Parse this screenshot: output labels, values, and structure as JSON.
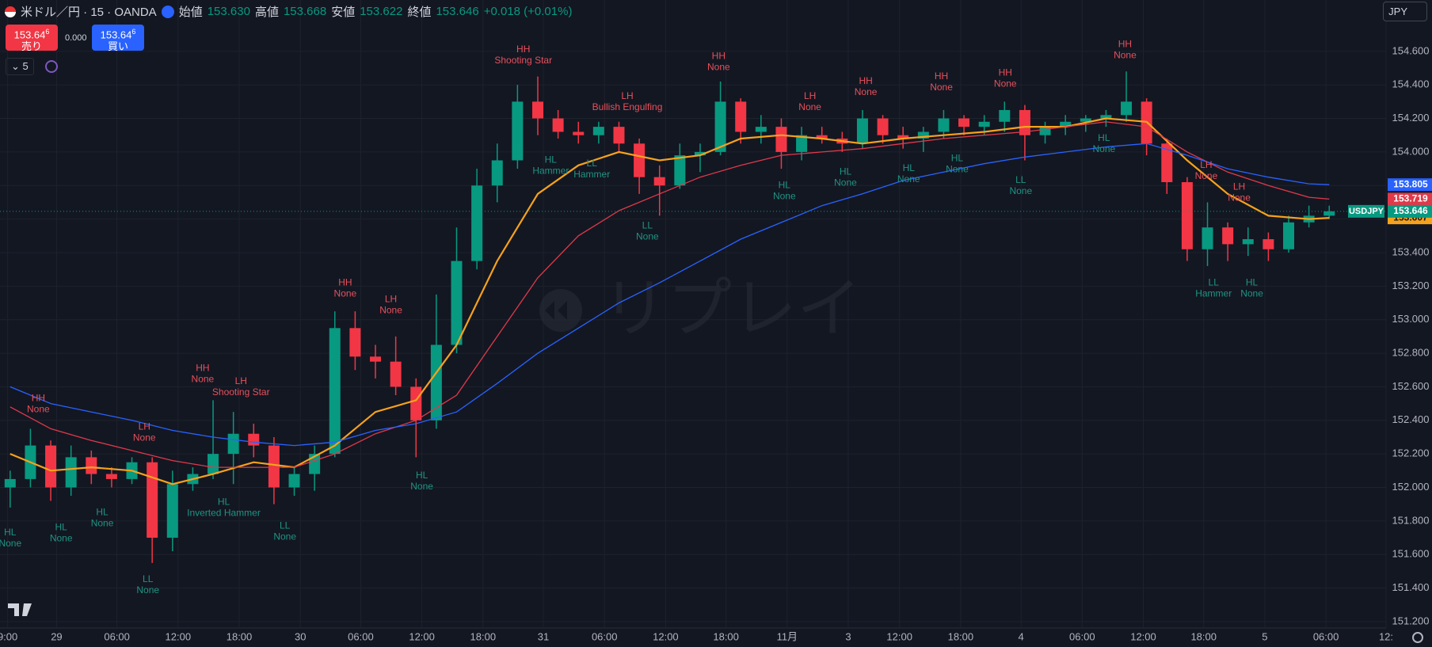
{
  "header": {
    "symbol": "米ドル／円 · 15 · OANDA",
    "open_label": "始値",
    "open": "153.630",
    "high_label": "高値",
    "high": "153.668",
    "low_label": "安値",
    "low": "153.622",
    "close_label": "終値",
    "close": "153.646",
    "change": "+0.018 (+0.01%)",
    "currency": "JPY"
  },
  "trade": {
    "sell_price": "153.64",
    "sell_pip": "6",
    "sell_label": "売り",
    "spread": "0.000",
    "buy_price": "153.64",
    "buy_pip": "6",
    "buy_label": "買い",
    "indicator_count": "5"
  },
  "watermark": "リプレイ",
  "chart_data": {
    "type": "candlestick",
    "symbol_badge": "USDJPY",
    "up_color": "#089981",
    "down_color": "#f23645",
    "grid": true,
    "xlim": [
      0,
      546.4
    ],
    "ylim": [
      151.162,
      154.906
    ],
    "xticks": [
      {
        "value": 3,
        "label": "9:00"
      },
      {
        "value": 22.3,
        "label": "29"
      },
      {
        "value": 46.1,
        "label": "06:00"
      },
      {
        "value": 70.2,
        "label": "12:00"
      },
      {
        "value": 94.3,
        "label": "18:00"
      },
      {
        "value": 118.4,
        "label": "30"
      },
      {
        "value": 142.2,
        "label": "06:00"
      },
      {
        "value": 166.3,
        "label": "12:00"
      },
      {
        "value": 190.4,
        "label": "18:00"
      },
      {
        "value": 214.2,
        "label": "31"
      },
      {
        "value": 238.3,
        "label": "06:00"
      },
      {
        "value": 262.4,
        "label": "12:00"
      },
      {
        "value": 286.2,
        "label": "18:00"
      },
      {
        "value": 310.3,
        "label": "11月"
      },
      {
        "value": 334.4,
        "label": "3"
      },
      {
        "value": 354.6,
        "label": "12:00"
      },
      {
        "value": 378.7,
        "label": "18:00"
      },
      {
        "value": 402.5,
        "label": "4"
      },
      {
        "value": 426.6,
        "label": "06:00"
      },
      {
        "value": 450.7,
        "label": "12:00"
      },
      {
        "value": 474.5,
        "label": "18:00"
      },
      {
        "value": 498.6,
        "label": "5"
      },
      {
        "value": 522.7,
        "label": "06:00"
      },
      {
        "value": 546.4,
        "label": "12:"
      }
    ],
    "yticks": [
      {
        "value": 151.2,
        "label": "151.200"
      },
      {
        "value": 151.4,
        "label": "151.400"
      },
      {
        "value": 151.6,
        "label": "151.600"
      },
      {
        "value": 151.8,
        "label": "151.800"
      },
      {
        "value": 152.0,
        "label": "152.000"
      },
      {
        "value": 152.2,
        "label": "152.200"
      },
      {
        "value": 152.4,
        "label": "152.400"
      },
      {
        "value": 152.6,
        "label": "152.600"
      },
      {
        "value": 152.8,
        "label": "152.800"
      },
      {
        "value": 153.0,
        "label": "153.000"
      },
      {
        "value": 153.2,
        "label": "153.200"
      },
      {
        "value": 153.4,
        "label": "153.400"
      },
      {
        "value": 153.6,
        "label": "153.600"
      },
      {
        "value": 153.8,
        "label": "153.800"
      },
      {
        "value": 154.0,
        "label": "154.000"
      },
      {
        "value": 154.2,
        "label": "154.200"
      },
      {
        "value": 154.4,
        "label": "154.400"
      },
      {
        "value": 154.6,
        "label": "154.600"
      }
    ],
    "x": [
      4,
      12,
      20,
      28,
      36,
      44,
      52,
      60,
      68,
      76,
      84,
      92,
      100,
      108,
      116,
      124,
      132,
      140,
      148,
      156,
      164,
      172,
      180,
      188,
      196,
      204,
      212,
      220,
      228,
      236,
      244,
      252,
      260,
      268,
      276,
      284,
      292,
      300,
      308,
      316,
      324,
      332,
      340,
      348,
      356,
      364,
      372,
      380,
      388,
      396,
      404,
      412,
      420,
      428,
      436,
      444,
      452,
      460,
      468,
      476,
      484,
      492,
      500,
      508,
      516,
      524
    ],
    "candles": [
      [
        152.0,
        152.1,
        151.88,
        152.05
      ],
      [
        152.05,
        152.35,
        152.0,
        152.25
      ],
      [
        152.25,
        152.28,
        151.92,
        152.0
      ],
      [
        152.0,
        152.25,
        151.95,
        152.18
      ],
      [
        152.18,
        152.22,
        152.02,
        152.08
      ],
      [
        152.08,
        152.12,
        152.0,
        152.05
      ],
      [
        152.05,
        152.18,
        152.02,
        152.15
      ],
      [
        152.15,
        152.18,
        151.55,
        151.7
      ],
      [
        151.7,
        152.1,
        151.62,
        152.02
      ],
      [
        152.02,
        152.12,
        151.98,
        152.08
      ],
      [
        152.08,
        152.52,
        152.05,
        152.2
      ],
      [
        152.2,
        152.45,
        152.02,
        152.32
      ],
      [
        152.32,
        152.38,
        152.18,
        152.25
      ],
      [
        152.25,
        152.3,
        151.9,
        152.0
      ],
      [
        152.0,
        152.12,
        151.95,
        152.08
      ],
      [
        152.08,
        152.25,
        151.98,
        152.2
      ],
      [
        152.2,
        153.05,
        152.18,
        152.95
      ],
      [
        152.95,
        153.05,
        152.7,
        152.78
      ],
      [
        152.78,
        152.85,
        152.65,
        152.75
      ],
      [
        152.75,
        152.9,
        152.55,
        152.6
      ],
      [
        152.6,
        152.65,
        152.18,
        152.4
      ],
      [
        152.4,
        153.15,
        152.35,
        152.85
      ],
      [
        152.85,
        153.55,
        152.8,
        153.35
      ],
      [
        153.35,
        153.9,
        153.3,
        153.8
      ],
      [
        153.8,
        154.05,
        153.7,
        153.95
      ],
      [
        153.95,
        154.4,
        153.9,
        154.3
      ],
      [
        154.3,
        154.45,
        154.1,
        154.2
      ],
      [
        154.2,
        154.25,
        154.08,
        154.12
      ],
      [
        154.12,
        154.18,
        154.05,
        154.1
      ],
      [
        154.1,
        154.18,
        154.05,
        154.15
      ],
      [
        154.15,
        154.18,
        154.0,
        154.05
      ],
      [
        154.05,
        154.08,
        153.75,
        153.85
      ],
      [
        153.85,
        153.92,
        153.62,
        153.8
      ],
      [
        153.8,
        154.05,
        153.78,
        153.98
      ],
      [
        153.98,
        154.05,
        153.88,
        154.0
      ],
      [
        154.0,
        154.42,
        153.98,
        154.3
      ],
      [
        154.3,
        154.32,
        154.05,
        154.12
      ],
      [
        154.12,
        154.22,
        154.05,
        154.15
      ],
      [
        154.15,
        154.2,
        153.9,
        154.0
      ],
      [
        154.0,
        154.15,
        153.95,
        154.1
      ],
      [
        154.1,
        154.15,
        154.05,
        154.08
      ],
      [
        154.08,
        154.12,
        154.0,
        154.05
      ],
      [
        154.05,
        154.25,
        154.02,
        154.2
      ],
      [
        154.2,
        154.22,
        154.05,
        154.1
      ],
      [
        154.1,
        154.15,
        154.02,
        154.08
      ],
      [
        154.08,
        154.15,
        154.0,
        154.12
      ],
      [
        154.12,
        154.25,
        154.08,
        154.2
      ],
      [
        154.2,
        154.22,
        154.1,
        154.15
      ],
      [
        154.15,
        154.22,
        154.1,
        154.18
      ],
      [
        154.18,
        154.3,
        154.12,
        154.25
      ],
      [
        154.25,
        154.28,
        153.95,
        154.1
      ],
      [
        154.1,
        154.18,
        154.05,
        154.15
      ],
      [
        154.15,
        154.22,
        154.1,
        154.18
      ],
      [
        154.18,
        154.22,
        154.12,
        154.2
      ],
      [
        154.2,
        154.25,
        154.15,
        154.22
      ],
      [
        154.22,
        154.48,
        154.18,
        154.3
      ],
      [
        154.3,
        154.32,
        153.98,
        154.05
      ],
      [
        154.05,
        154.08,
        153.75,
        153.82
      ],
      [
        153.82,
        153.85,
        153.35,
        153.42
      ],
      [
        153.42,
        153.7,
        153.32,
        153.55
      ],
      [
        153.55,
        153.58,
        153.35,
        153.45
      ],
      [
        153.45,
        153.55,
        153.38,
        153.48
      ],
      [
        153.48,
        153.52,
        153.35,
        153.42
      ],
      [
        153.42,
        153.62,
        153.4,
        153.58
      ],
      [
        153.58,
        153.68,
        153.55,
        153.62
      ],
      [
        153.62,
        153.68,
        153.6,
        153.646
      ]
    ],
    "lines": [
      {
        "color": "#f7a21b",
        "x": [
          4,
          20,
          36,
          52,
          68,
          84,
          100,
          116,
          132,
          148,
          164,
          180,
          196,
          212,
          228,
          244,
          260,
          276,
          292,
          308,
          324,
          340,
          356,
          372,
          388,
          404,
          420,
          436,
          452,
          468,
          484,
          500,
          516,
          524
        ],
        "values": [
          152.2,
          152.1,
          152.12,
          152.1,
          152.02,
          152.08,
          152.15,
          152.12,
          152.25,
          152.45,
          152.52,
          152.85,
          153.35,
          153.75,
          153.92,
          154.0,
          153.95,
          153.98,
          154.08,
          154.1,
          154.08,
          154.05,
          154.08,
          154.1,
          154.12,
          154.15,
          154.15,
          154.2,
          154.18,
          153.95,
          153.75,
          153.62,
          153.6,
          153.607
        ]
      },
      {
        "color": "#e0394a",
        "x": [
          4,
          20,
          36,
          52,
          68,
          84,
          100,
          116,
          132,
          148,
          164,
          180,
          196,
          212,
          228,
          244,
          260,
          276,
          292,
          308,
          324,
          340,
          356,
          372,
          388,
          404,
          420,
          436,
          452,
          468,
          484,
          500,
          516,
          524
        ],
        "values": [
          152.48,
          152.35,
          152.28,
          152.22,
          152.16,
          152.12,
          152.12,
          152.12,
          152.2,
          152.32,
          152.4,
          152.55,
          152.9,
          153.25,
          153.5,
          153.65,
          153.75,
          153.85,
          153.92,
          153.98,
          154.0,
          154.02,
          154.05,
          154.08,
          154.1,
          154.12,
          154.15,
          154.18,
          154.15,
          154.0,
          153.88,
          153.8,
          153.73,
          153.719
        ]
      },
      {
        "color": "#2962ff",
        "x": [
          4,
          20,
          36,
          52,
          68,
          84,
          100,
          116,
          132,
          148,
          164,
          180,
          196,
          212,
          228,
          244,
          260,
          276,
          292,
          308,
          324,
          340,
          356,
          372,
          388,
          404,
          420,
          436,
          452,
          468,
          484,
          500,
          516,
          524
        ],
        "values": [
          152.6,
          152.5,
          152.45,
          152.4,
          152.34,
          152.3,
          152.27,
          152.25,
          152.27,
          152.34,
          152.38,
          152.45,
          152.62,
          152.8,
          152.95,
          153.1,
          153.22,
          153.35,
          153.48,
          153.58,
          153.68,
          153.75,
          153.83,
          153.88,
          153.93,
          153.97,
          154.0,
          154.03,
          154.05,
          153.98,
          153.9,
          153.85,
          153.81,
          153.805
        ]
      }
    ],
    "annotation_groups": [
      {
        "color": "#e8505b",
        "items": [
          {
            "x": 15.1,
            "y": 152.53,
            "text": [
              "HH",
              "None"
            ]
          },
          {
            "x": 56.9,
            "y": 152.36,
            "text": [
              "LH",
              "None"
            ]
          },
          {
            "x": 79.9,
            "y": 152.71,
            "text": [
              "HH",
              "None"
            ]
          },
          {
            "x": 95.0,
            "y": 152.63,
            "text": [
              "LH",
              "Shooting Star"
            ]
          },
          {
            "x": 136.1,
            "y": 153.22,
            "text": [
              "HH",
              "None"
            ]
          },
          {
            "x": 154.1,
            "y": 153.12,
            "text": [
              "LH",
              "None"
            ]
          },
          {
            "x": 206.3,
            "y": 154.61,
            "text": [
              "HH",
              "Shooting Star"
            ]
          },
          {
            "x": 247.3,
            "y": 154.33,
            "text": [
              "LH",
              "Bullish Engulfing"
            ]
          },
          {
            "x": 283.3,
            "y": 154.57,
            "text": [
              "HH",
              "None"
            ]
          },
          {
            "x": 319.3,
            "y": 154.33,
            "text": [
              "LH",
              "None"
            ]
          },
          {
            "x": 341.3,
            "y": 154.42,
            "text": [
              "HH",
              "None"
            ]
          },
          {
            "x": 371.1,
            "y": 154.45,
            "text": [
              "HH",
              "None"
            ]
          },
          {
            "x": 396.3,
            "y": 154.47,
            "text": [
              "HH",
              "None"
            ]
          },
          {
            "x": 443.5,
            "y": 154.64,
            "text": [
              "HH",
              "None"
            ]
          },
          {
            "x": 475.5,
            "y": 153.92,
            "text": [
              "LH",
              "None"
            ]
          },
          {
            "x": 488.5,
            "y": 153.79,
            "text": [
              "LH",
              "None"
            ]
          }
        ]
      },
      {
        "color": "#1f9484",
        "items": [
          {
            "x": 4.0,
            "y": 151.73,
            "text": [
              "HL",
              "None"
            ]
          },
          {
            "x": 24.1,
            "y": 151.76,
            "text": [
              "HL",
              "None"
            ]
          },
          {
            "x": 40.3,
            "y": 151.85,
            "text": [
              "HL",
              "None"
            ]
          },
          {
            "x": 58.3,
            "y": 151.45,
            "text": [
              "LL",
              "None"
            ]
          },
          {
            "x": 88.2,
            "y": 151.91,
            "text": [
              "HL",
              "Inverted Hammer"
            ]
          },
          {
            "x": 112.3,
            "y": 151.77,
            "text": [
              "LL",
              "None"
            ]
          },
          {
            "x": 166.3,
            "y": 152.07,
            "text": [
              "HL",
              "None"
            ]
          },
          {
            "x": 217.1,
            "y": 153.95,
            "text": [
              "HL",
              "Hammer"
            ]
          },
          {
            "x": 233.3,
            "y": 153.93,
            "text": [
              "LL",
              "Hammer"
            ]
          },
          {
            "x": 255.2,
            "y": 153.56,
            "text": [
              "LL",
              "None"
            ]
          },
          {
            "x": 309.2,
            "y": 153.8,
            "text": [
              "HL",
              "None"
            ]
          },
          {
            "x": 333.3,
            "y": 153.88,
            "text": [
              "HL",
              "None"
            ]
          },
          {
            "x": 358.2,
            "y": 153.9,
            "text": [
              "HL",
              "None"
            ]
          },
          {
            "x": 377.3,
            "y": 153.96,
            "text": [
              "HL",
              "None"
            ]
          },
          {
            "x": 402.4,
            "y": 153.83,
            "text": [
              "LL",
              "None"
            ]
          },
          {
            "x": 435.2,
            "y": 154.08,
            "text": [
              "HL",
              "None"
            ]
          },
          {
            "x": 478.4,
            "y": 153.22,
            "text": [
              "LL",
              "Hammer"
            ]
          },
          {
            "x": 493.5,
            "y": 153.22,
            "text": [
              "HL",
              "None"
            ]
          }
        ]
      }
    ]
  }
}
